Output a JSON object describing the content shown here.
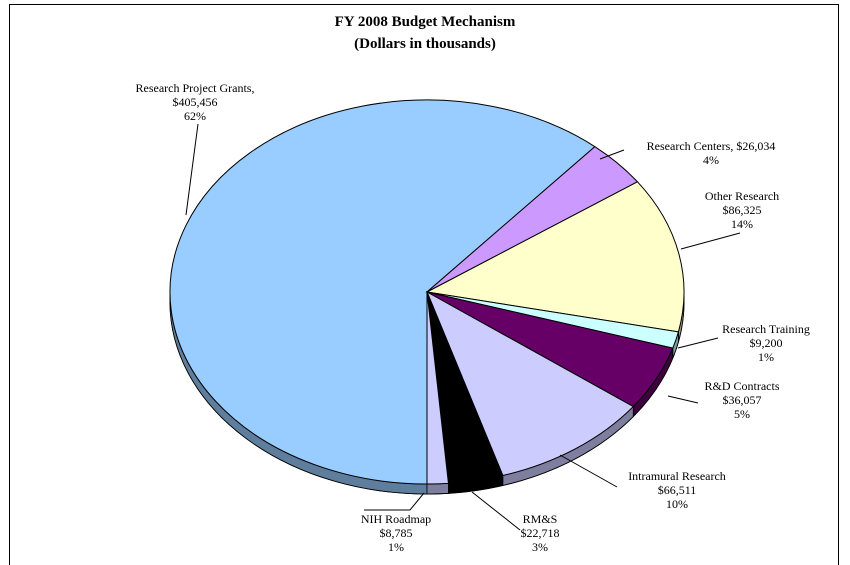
{
  "chart_data": {
    "type": "pie",
    "title": "FY  2008 Budget Mechanism",
    "subtitle": "(Dollars in thousands)",
    "slices": [
      {
        "name": "Research Project Grants",
        "value_text": "$405,456",
        "percent_text": "62%",
        "value": 405456,
        "color": "#99ccff"
      },
      {
        "name": "Research Centers",
        "value_text": "$26,034",
        "percent_text": "4%",
        "value": 26034,
        "color": "#cc99ff"
      },
      {
        "name": "Other Research",
        "value_text": "$86,325",
        "percent_text": "14%",
        "value": 86325,
        "color": "#ffffcc"
      },
      {
        "name": "Research Training",
        "value_text": "$9,200",
        "percent_text": "1%",
        "value": 9200,
        "color": "#ccffff"
      },
      {
        "name": "R&D Contracts",
        "value_text": "$36,057",
        "percent_text": "5%",
        "value": 36057,
        "color": "#660066"
      },
      {
        "name": "Intramural Research",
        "value_text": "$66,511",
        "percent_text": "10%",
        "value": 66511,
        "color": "#ccccff"
      },
      {
        "name": "RM&S",
        "value_text": "$22,718",
        "percent_text": "3%",
        "value": 22718,
        "color": "#000000"
      },
      {
        "name": "NIH Roadmap",
        "value_text": "$8,785",
        "percent_text": "1%",
        "value": 8785,
        "color": "#ccccff"
      }
    ]
  }
}
